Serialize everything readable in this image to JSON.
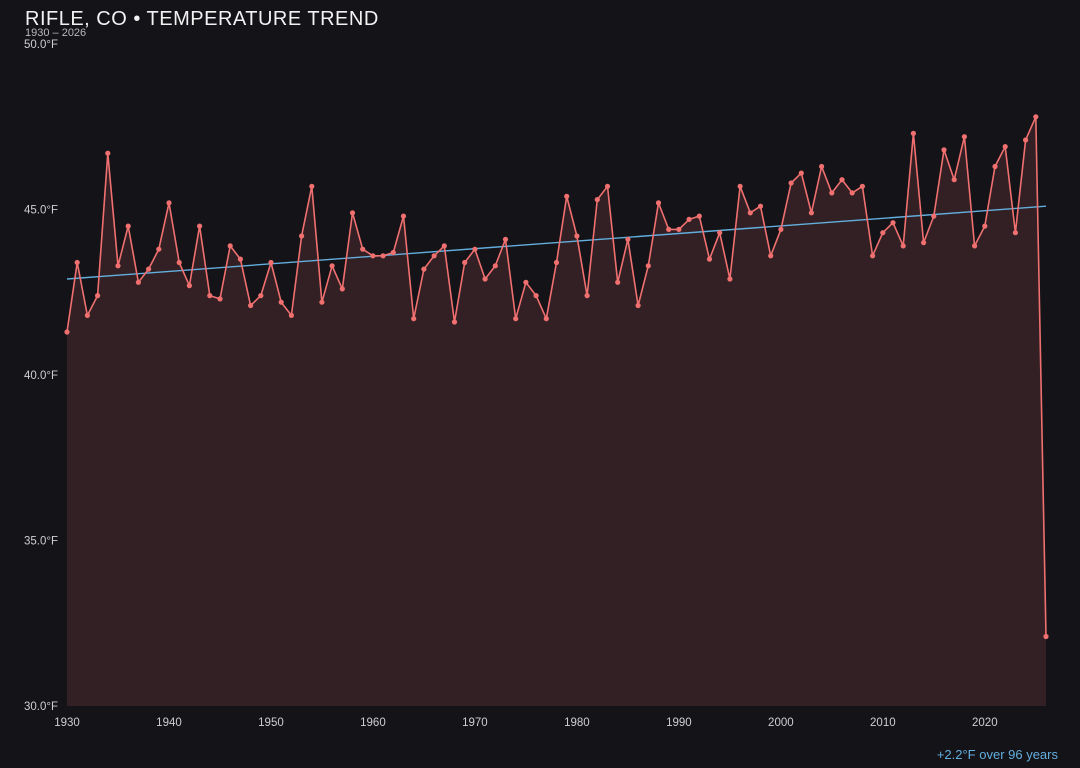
{
  "header": {
    "title": "RIFLE, CO • TEMPERATURE TREND",
    "subtitle": "1930 – 2026"
  },
  "footer": {
    "annotation": "+2.2°F over 96 years"
  },
  "colors": {
    "background": "#131318",
    "line": "#f07070",
    "marker": "#f07070",
    "area_fill": "rgba(240,112,112,0.14)",
    "trend": "#64aede",
    "tick_text": "#cfcfcf",
    "annotation_text": "#64aede"
  },
  "chart_data": {
    "type": "line",
    "title": "RIFLE, CO • TEMPERATURE TREND",
    "subtitle": "1930 – 2026",
    "xlabel": "",
    "ylabel": "",
    "x_range": [
      1930,
      2026
    ],
    "ylim": [
      30,
      50
    ],
    "grid": false,
    "legend": "none",
    "x_ticks": [
      "1930",
      "1940",
      "1950",
      "1960",
      "1970",
      "1980",
      "1990",
      "2000",
      "2010",
      "2020"
    ],
    "x_tick_values": [
      1930,
      1940,
      1950,
      1960,
      1970,
      1980,
      1990,
      2000,
      2010,
      2020
    ],
    "y_ticks": [
      "50.0°F",
      "45.0°F",
      "40.0°F",
      "35.0°F",
      "30.0°F"
    ],
    "y_tick_values": [
      50,
      45,
      40,
      35,
      30
    ],
    "years_start": 1930,
    "values": [
      41.3,
      43.4,
      41.8,
      42.4,
      46.7,
      43.3,
      44.5,
      42.8,
      43.2,
      43.8,
      45.2,
      43.4,
      42.7,
      44.5,
      42.4,
      42.3,
      43.9,
      43.5,
      42.1,
      42.4,
      43.4,
      42.2,
      41.8,
      44.2,
      45.7,
      42.2,
      43.3,
      42.6,
      44.9,
      43.8,
      43.6,
      43.6,
      43.7,
      44.8,
      41.7,
      43.2,
      43.6,
      43.9,
      41.6,
      43.4,
      43.8,
      42.9,
      43.3,
      44.1,
      41.7,
      42.8,
      42.4,
      41.7,
      43.4,
      45.4,
      44.2,
      42.4,
      45.3,
      45.7,
      42.8,
      44.1,
      42.1,
      43.3,
      45.2,
      44.4,
      44.4,
      44.7,
      44.8,
      43.5,
      44.3,
      42.9,
      45.7,
      44.9,
      45.1,
      43.6,
      44.4,
      45.8,
      46.1,
      44.9,
      46.3,
      45.5,
      45.9,
      45.5,
      45.7,
      43.6,
      44.3,
      44.6,
      43.9,
      47.3,
      44.0,
      44.8,
      46.8,
      45.9,
      47.2,
      43.9,
      44.5,
      46.3,
      46.9,
      44.3,
      47.1,
      47.8,
      32.1
    ],
    "trend": {
      "start_year": 1930,
      "start_value": 42.9,
      "end_year": 2026,
      "end_value": 45.1
    },
    "annotation": "+2.2°F over 96 years"
  }
}
